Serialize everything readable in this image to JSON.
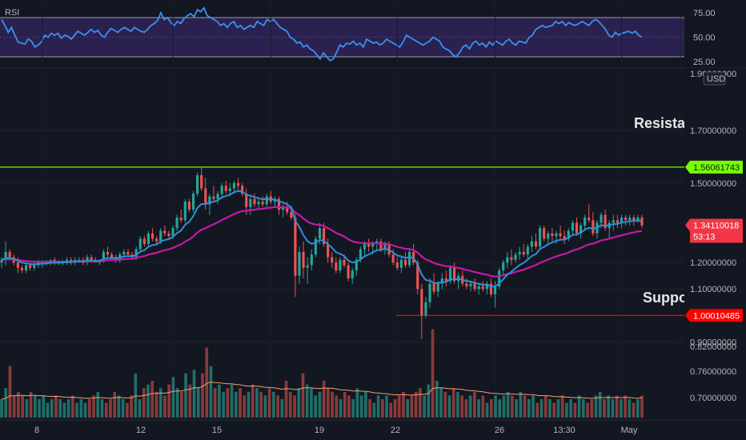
{
  "chart_data": {
    "type": "candlestick",
    "currency": "USD",
    "x_ticks": [
      "8",
      "12",
      "15",
      "19",
      "22",
      "26",
      "13:30",
      "May"
    ],
    "price_axis": {
      "ticks": [
        "1.90000000",
        "1.70000000",
        "1.50000000",
        "1.20000000",
        "1.10000000",
        "0.90000000",
        "0.82000000",
        "0.76000000",
        "0.70000000"
      ],
      "range": [
        0.62,
        1.92
      ]
    },
    "levels": {
      "resistance": {
        "label": "Resistance",
        "value": 1.56061743,
        "value_text": "1.56061743",
        "color": "#76ff03"
      },
      "support": {
        "label": "Support",
        "value": 1.00010485,
        "value_text": "1.00010485",
        "color": "#ff0000"
      }
    },
    "last_price": {
      "value": 1.34110018,
      "value_text": "1.34110018",
      "countdown": "53:13",
      "color": "#f23645"
    },
    "colors": {
      "up": "#26a69a",
      "down": "#ef5350",
      "ma_fast": "#2f8fd8",
      "ma_slow": "#c21aa8",
      "rsi": "#3d8ff0",
      "volume_ma": "#f0a070"
    },
    "rsi": {
      "label": "RSI",
      "ticks": [
        "75.00",
        "50.00",
        "25.00"
      ],
      "upper": 70,
      "lower": 30,
      "values": [
        68,
        62,
        55,
        60,
        52,
        45,
        44,
        43,
        48,
        46,
        40,
        42,
        45,
        52,
        50,
        54,
        52,
        54,
        49,
        52,
        51,
        48,
        52,
        56,
        54,
        52,
        55,
        58,
        55,
        57,
        52,
        50,
        55,
        59,
        57,
        55,
        58,
        60,
        58,
        56,
        60,
        58,
        56,
        55,
        58,
        62,
        64,
        67,
        75,
        68,
        70,
        65,
        62,
        66,
        64,
        69,
        72,
        74,
        71,
        78,
        76,
        80,
        72,
        70,
        68,
        66,
        62,
        64,
        60,
        64,
        66,
        60,
        62,
        58,
        60,
        62,
        60,
        66,
        64,
        62,
        68,
        66,
        68,
        64,
        60,
        58,
        56,
        50,
        48,
        44,
        45,
        40,
        42,
        38,
        36,
        32,
        28,
        34,
        30,
        26,
        28,
        35,
        42,
        40,
        44,
        43,
        46,
        42,
        44,
        40,
        48,
        46,
        44,
        45,
        42,
        44,
        48,
        46,
        44,
        42,
        40,
        45,
        52,
        50,
        48,
        46,
        44,
        42,
        44,
        46,
        50,
        48,
        46,
        40,
        38,
        36,
        32,
        30,
        34,
        40,
        42,
        38,
        44,
        46,
        42,
        44,
        40,
        45,
        42,
        46,
        44,
        42,
        46,
        48,
        44,
        42,
        46,
        45,
        44,
        50,
        52,
        58,
        60,
        62,
        60,
        61,
        62,
        66,
        64,
        66,
        62,
        65,
        63,
        62,
        64,
        66,
        64,
        62,
        66,
        68,
        66,
        62,
        58,
        52,
        50,
        55,
        52,
        54,
        55,
        56,
        54,
        56,
        52,
        50
      ]
    },
    "candles": [
      [
        1.2,
        1.22,
        1.18,
        1.21
      ],
      [
        1.21,
        1.28,
        1.19,
        1.24
      ],
      [
        1.24,
        1.25,
        1.21,
        1.22
      ],
      [
        1.22,
        1.23,
        1.19,
        1.2
      ],
      [
        1.2,
        1.22,
        1.16,
        1.18
      ],
      [
        1.18,
        1.19,
        1.16,
        1.17
      ],
      [
        1.17,
        1.2,
        1.16,
        1.19
      ],
      [
        1.19,
        1.2,
        1.17,
        1.18
      ],
      [
        1.18,
        1.2,
        1.17,
        1.19
      ],
      [
        1.19,
        1.21,
        1.18,
        1.2
      ],
      [
        1.2,
        1.21,
        1.18,
        1.2
      ],
      [
        1.2,
        1.21,
        1.19,
        1.2
      ],
      [
        1.2,
        1.21,
        1.19,
        1.21
      ],
      [
        1.21,
        1.22,
        1.19,
        1.2
      ],
      [
        1.2,
        1.21,
        1.19,
        1.2
      ],
      [
        1.2,
        1.21,
        1.19,
        1.2
      ],
      [
        1.2,
        1.22,
        1.19,
        1.21
      ],
      [
        1.21,
        1.22,
        1.19,
        1.2
      ],
      [
        1.2,
        1.22,
        1.19,
        1.21
      ],
      [
        1.21,
        1.22,
        1.2,
        1.21
      ],
      [
        1.21,
        1.22,
        1.19,
        1.2
      ],
      [
        1.2,
        1.23,
        1.19,
        1.22
      ],
      [
        1.22,
        1.23,
        1.2,
        1.21
      ],
      [
        1.21,
        1.22,
        1.2,
        1.2
      ],
      [
        1.2,
        1.21,
        1.19,
        1.21
      ],
      [
        1.21,
        1.25,
        1.2,
        1.24
      ],
      [
        1.24,
        1.26,
        1.22,
        1.23
      ],
      [
        1.23,
        1.24,
        1.21,
        1.22
      ],
      [
        1.22,
        1.23,
        1.2,
        1.21
      ],
      [
        1.21,
        1.24,
        1.2,
        1.23
      ],
      [
        1.23,
        1.25,
        1.22,
        1.24
      ],
      [
        1.24,
        1.25,
        1.22,
        1.23
      ],
      [
        1.23,
        1.24,
        1.21,
        1.22
      ],
      [
        1.22,
        1.26,
        1.21,
        1.25
      ],
      [
        1.25,
        1.3,
        1.24,
        1.29
      ],
      [
        1.29,
        1.3,
        1.26,
        1.27
      ],
      [
        1.27,
        1.32,
        1.26,
        1.31
      ],
      [
        1.31,
        1.33,
        1.28,
        1.29
      ],
      [
        1.29,
        1.3,
        1.27,
        1.28
      ],
      [
        1.28,
        1.33,
        1.27,
        1.32
      ],
      [
        1.32,
        1.34,
        1.3,
        1.31
      ],
      [
        1.31,
        1.32,
        1.29,
        1.3
      ],
      [
        1.3,
        1.34,
        1.29,
        1.33
      ],
      [
        1.33,
        1.38,
        1.32,
        1.37
      ],
      [
        1.37,
        1.4,
        1.35,
        1.36
      ],
      [
        1.36,
        1.44,
        1.35,
        1.43
      ],
      [
        1.43,
        1.44,
        1.39,
        1.4
      ],
      [
        1.4,
        1.47,
        1.39,
        1.46
      ],
      [
        1.46,
        1.54,
        1.45,
        1.53
      ],
      [
        1.53,
        1.56,
        1.47,
        1.48
      ],
      [
        1.48,
        1.52,
        1.4,
        1.42
      ],
      [
        1.42,
        1.46,
        1.38,
        1.45
      ],
      [
        1.45,
        1.49,
        1.43,
        1.44
      ],
      [
        1.44,
        1.47,
        1.42,
        1.46
      ],
      [
        1.46,
        1.5,
        1.44,
        1.49
      ],
      [
        1.49,
        1.51,
        1.46,
        1.47
      ],
      [
        1.47,
        1.5,
        1.45,
        1.48
      ],
      [
        1.48,
        1.51,
        1.46,
        1.5
      ],
      [
        1.5,
        1.52,
        1.47,
        1.49
      ],
      [
        1.49,
        1.5,
        1.45,
        1.46
      ],
      [
        1.46,
        1.48,
        1.38,
        1.41
      ],
      [
        1.41,
        1.45,
        1.38,
        1.44
      ],
      [
        1.44,
        1.46,
        1.41,
        1.42
      ],
      [
        1.42,
        1.44,
        1.4,
        1.43
      ],
      [
        1.43,
        1.45,
        1.41,
        1.42
      ],
      [
        1.42,
        1.46,
        1.41,
        1.45
      ],
      [
        1.45,
        1.47,
        1.42,
        1.43
      ],
      [
        1.43,
        1.45,
        1.41,
        1.44
      ],
      [
        1.44,
        1.45,
        1.38,
        1.4
      ],
      [
        1.4,
        1.42,
        1.37,
        1.41
      ],
      [
        1.41,
        1.43,
        1.38,
        1.39
      ],
      [
        1.39,
        1.41,
        1.36,
        1.37
      ],
      [
        1.37,
        1.39,
        1.07,
        1.15
      ],
      [
        1.15,
        1.26,
        1.12,
        1.24
      ],
      [
        1.24,
        1.28,
        1.14,
        1.18
      ],
      [
        1.18,
        1.22,
        1.12,
        1.19
      ],
      [
        1.19,
        1.25,
        1.17,
        1.23
      ],
      [
        1.23,
        1.3,
        1.22,
        1.29
      ],
      [
        1.29,
        1.35,
        1.27,
        1.33
      ],
      [
        1.33,
        1.35,
        1.26,
        1.27
      ],
      [
        1.27,
        1.29,
        1.2,
        1.22
      ],
      [
        1.22,
        1.24,
        1.18,
        1.2
      ],
      [
        1.2,
        1.22,
        1.16,
        1.17
      ],
      [
        1.17,
        1.22,
        1.16,
        1.21
      ],
      [
        1.21,
        1.23,
        1.18,
        1.19
      ],
      [
        1.19,
        1.2,
        1.13,
        1.14
      ],
      [
        1.14,
        1.18,
        1.12,
        1.17
      ],
      [
        1.17,
        1.22,
        1.15,
        1.21
      ],
      [
        1.21,
        1.26,
        1.2,
        1.25
      ],
      [
        1.25,
        1.28,
        1.22,
        1.27
      ],
      [
        1.27,
        1.29,
        1.24,
        1.26
      ],
      [
        1.26,
        1.28,
        1.23,
        1.27
      ],
      [
        1.27,
        1.29,
        1.25,
        1.28
      ],
      [
        1.28,
        1.29,
        1.24,
        1.25
      ],
      [
        1.25,
        1.28,
        1.23,
        1.27
      ],
      [
        1.27,
        1.28,
        1.22,
        1.23
      ],
      [
        1.23,
        1.25,
        1.19,
        1.2
      ],
      [
        1.2,
        1.22,
        1.17,
        1.18
      ],
      [
        1.18,
        1.22,
        1.16,
        1.21
      ],
      [
        1.21,
        1.24,
        1.18,
        1.19
      ],
      [
        1.19,
        1.25,
        1.18,
        1.24
      ],
      [
        1.24,
        1.27,
        1.19,
        1.2
      ],
      [
        1.2,
        1.21,
        1.08,
        1.1
      ],
      [
        1.1,
        1.12,
        0.91,
        1.0
      ],
      [
        1.0,
        1.07,
        0.99,
        1.05
      ],
      [
        1.05,
        1.14,
        1.03,
        1.12
      ],
      [
        1.12,
        1.16,
        1.08,
        1.09
      ],
      [
        1.09,
        1.13,
        1.07,
        1.12
      ],
      [
        1.12,
        1.16,
        1.1,
        1.14
      ],
      [
        1.14,
        1.17,
        1.11,
        1.13
      ],
      [
        1.13,
        1.19,
        1.12,
        1.18
      ],
      [
        1.18,
        1.2,
        1.12,
        1.13
      ],
      [
        1.13,
        1.16,
        1.1,
        1.15
      ],
      [
        1.15,
        1.17,
        1.11,
        1.12
      ],
      [
        1.12,
        1.14,
        1.1,
        1.11
      ],
      [
        1.11,
        1.13,
        1.09,
        1.12
      ],
      [
        1.12,
        1.14,
        1.09,
        1.1
      ],
      [
        1.1,
        1.12,
        1.08,
        1.11
      ],
      [
        1.11,
        1.13,
        1.09,
        1.1
      ],
      [
        1.1,
        1.13,
        1.08,
        1.12
      ],
      [
        1.12,
        1.14,
        1.07,
        1.08
      ],
      [
        1.08,
        1.13,
        1.03,
        1.11
      ],
      [
        1.11,
        1.18,
        1.1,
        1.17
      ],
      [
        1.17,
        1.21,
        1.15,
        1.2
      ],
      [
        1.2,
        1.24,
        1.18,
        1.22
      ],
      [
        1.22,
        1.25,
        1.19,
        1.21
      ],
      [
        1.21,
        1.24,
        1.2,
        1.23
      ],
      [
        1.23,
        1.26,
        1.21,
        1.24
      ],
      [
        1.24,
        1.27,
        1.22,
        1.23
      ],
      [
        1.23,
        1.27,
        1.21,
        1.26
      ],
      [
        1.26,
        1.3,
        1.24,
        1.28
      ],
      [
        1.28,
        1.31,
        1.25,
        1.26
      ],
      [
        1.26,
        1.34,
        1.25,
        1.33
      ],
      [
        1.33,
        1.34,
        1.28,
        1.29
      ],
      [
        1.29,
        1.32,
        1.27,
        1.31
      ],
      [
        1.31,
        1.33,
        1.28,
        1.3
      ],
      [
        1.3,
        1.32,
        1.27,
        1.31
      ],
      [
        1.31,
        1.34,
        1.29,
        1.3
      ],
      [
        1.3,
        1.32,
        1.27,
        1.29
      ],
      [
        1.29,
        1.33,
        1.28,
        1.32
      ],
      [
        1.32,
        1.36,
        1.3,
        1.35
      ],
      [
        1.35,
        1.37,
        1.3,
        1.31
      ],
      [
        1.31,
        1.35,
        1.29,
        1.34
      ],
      [
        1.34,
        1.38,
        1.32,
        1.37
      ],
      [
        1.37,
        1.42,
        1.35,
        1.36
      ],
      [
        1.36,
        1.39,
        1.3,
        1.31
      ],
      [
        1.31,
        1.36,
        1.29,
        1.35
      ],
      [
        1.35,
        1.39,
        1.33,
        1.38
      ],
      [
        1.38,
        1.4,
        1.32,
        1.33
      ],
      [
        1.33,
        1.36,
        1.29,
        1.35
      ],
      [
        1.35,
        1.38,
        1.32,
        1.36
      ],
      [
        1.36,
        1.38,
        1.33,
        1.35
      ],
      [
        1.35,
        1.38,
        1.33,
        1.37
      ],
      [
        1.37,
        1.38,
        1.34,
        1.36
      ],
      [
        1.36,
        1.38,
        1.34,
        1.37
      ],
      [
        1.37,
        1.38,
        1.34,
        1.36
      ],
      [
        1.36,
        1.38,
        1.35,
        1.37
      ],
      [
        1.37,
        1.38,
        1.33,
        1.34
      ]
    ],
    "volume": [
      0.05,
      0.08,
      0.14,
      0.06,
      0.07,
      0.06,
      0.05,
      0.07,
      0.06,
      0.05,
      0.06,
      0.04,
      0.05,
      0.06,
      0.05,
      0.04,
      0.05,
      0.06,
      0.04,
      0.05,
      0.04,
      0.05,
      0.06,
      0.07,
      0.05,
      0.04,
      0.05,
      0.07,
      0.06,
      0.05,
      0.04,
      0.06,
      0.12,
      0.05,
      0.08,
      0.09,
      0.1,
      0.07,
      0.08,
      0.06,
      0.09,
      0.11,
      0.08,
      0.07,
      0.12,
      0.09,
      0.13,
      0.08,
      0.12,
      0.19,
      0.14,
      0.08,
      0.09,
      0.07,
      0.08,
      0.09,
      0.07,
      0.08,
      0.06,
      0.07,
      0.09,
      0.08,
      0.07,
      0.06,
      0.08,
      0.07,
      0.06,
      0.05,
      0.1,
      0.07,
      0.06,
      0.08,
      0.12,
      0.09,
      0.08,
      0.06,
      0.07,
      0.1,
      0.08,
      0.07,
      0.06,
      0.05,
      0.07,
      0.06,
      0.05,
      0.08,
      0.06,
      0.07,
      0.05,
      0.04,
      0.06,
      0.05,
      0.06,
      0.04,
      0.05,
      0.06,
      0.07,
      0.05,
      0.06,
      0.07,
      0.08,
      0.06,
      0.09,
      0.24,
      0.1,
      0.08,
      0.07,
      0.06,
      0.08,
      0.07,
      0.06,
      0.05,
      0.06,
      0.07,
      0.05,
      0.06,
      0.04,
      0.05,
      0.06,
      0.05,
      0.06,
      0.07,
      0.06,
      0.05,
      0.07,
      0.06,
      0.05,
      0.06,
      0.04,
      0.05,
      0.06,
      0.05,
      0.04,
      0.05,
      0.06,
      0.04,
      0.05,
      0.04,
      0.06,
      0.05,
      0.04,
      0.05,
      0.06,
      0.07,
      0.05,
      0.06,
      0.05,
      0.06,
      0.05,
      0.06,
      0.05,
      0.04,
      0.05,
      0.06
    ]
  }
}
